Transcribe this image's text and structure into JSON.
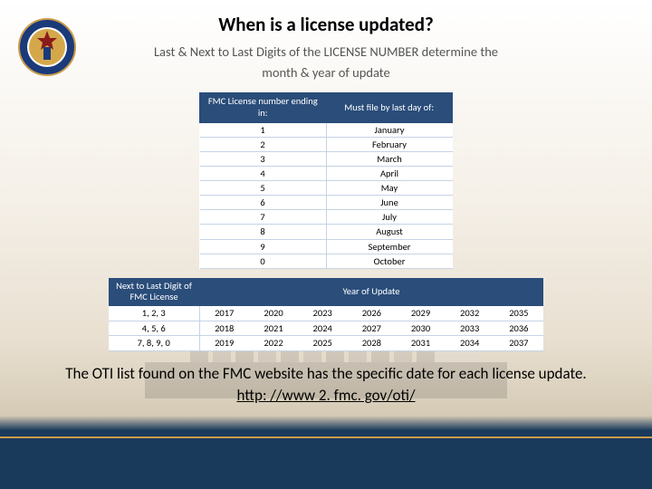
{
  "title": "When is a license updated?",
  "subtitle_line1": "Last & Next to Last Digits of the LICENSE NUMBER determine the",
  "subtitle_line2": "month & year of update",
  "table1": {
    "header_left": "FMC License number ending in:",
    "header_right": "Must file by last day of:",
    "rows": [
      {
        "digit": "1",
        "month": "January"
      },
      {
        "digit": "2",
        "month": "February"
      },
      {
        "digit": "3",
        "month": "March"
      },
      {
        "digit": "4",
        "month": "April"
      },
      {
        "digit": "5",
        "month": "May"
      },
      {
        "digit": "6",
        "month": "June"
      },
      {
        "digit": "7",
        "month": "July"
      },
      {
        "digit": "8",
        "month": "August"
      },
      {
        "digit": "9",
        "month": "September"
      },
      {
        "digit": "0",
        "month": "October"
      }
    ]
  },
  "table2": {
    "header_left": "Next to Last Digit of FMC License",
    "header_right": "Year of Update",
    "rows": [
      {
        "label": "1, 2, 3",
        "years": [
          "2017",
          "2020",
          "2023",
          "2026",
          "2029",
          "2032",
          "2035"
        ]
      },
      {
        "label": "4, 5, 6",
        "years": [
          "2018",
          "2021",
          "2024",
          "2027",
          "2030",
          "2033",
          "2036"
        ]
      },
      {
        "label": "7, 8, 9, 0",
        "years": [
          "2019",
          "2022",
          "2025",
          "2028",
          "2031",
          "2034",
          "2037"
        ]
      }
    ]
  },
  "footer_text": "The OTI list found on the FMC website has the specific date for each license update.",
  "footer_link": "http: //www 2. fmc. gov/oti/",
  "colors": {
    "header_bg": "#2a4d7a",
    "header_fg": "#ffffff",
    "row_border": "#c5d4e6",
    "bottom_bar": "#1a3a5c",
    "gold_accent": "#c89b4a"
  }
}
